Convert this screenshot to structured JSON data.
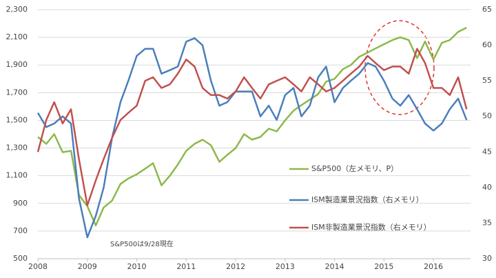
{
  "chart_data": {
    "type": "line",
    "x": [
      2008,
      2008.17,
      2008.33,
      2008.5,
      2008.67,
      2008.83,
      2009,
      2009.17,
      2009.33,
      2009.5,
      2009.67,
      2009.83,
      2010,
      2010.17,
      2010.33,
      2010.5,
      2010.67,
      2010.83,
      2011,
      2011.17,
      2011.33,
      2011.5,
      2011.67,
      2011.83,
      2012,
      2012.17,
      2012.33,
      2012.5,
      2012.67,
      2012.83,
      2013,
      2013.17,
      2013.33,
      2013.5,
      2013.67,
      2013.83,
      2014,
      2014.17,
      2014.33,
      2014.5,
      2014.67,
      2014.83,
      2015,
      2015.17,
      2015.33,
      2015.5,
      2015.67,
      2015.83,
      2016,
      2016.17,
      2016.33,
      2016.5,
      2016.67
    ],
    "series": [
      {
        "name": "S&P500（左メモリ、P）",
        "color": "#8db84a",
        "axis": "y",
        "values": [
          1380,
          1330,
          1400,
          1270,
          1280,
          960,
          880,
          740,
          870,
          920,
          1040,
          1080,
          1110,
          1150,
          1190,
          1030,
          1100,
          1180,
          1280,
          1330,
          1360,
          1320,
          1200,
          1250,
          1300,
          1400,
          1360,
          1380,
          1440,
          1420,
          1500,
          1570,
          1610,
          1650,
          1690,
          1780,
          1800,
          1870,
          1900,
          1960,
          1990,
          2020,
          2050,
          2080,
          2100,
          2080,
          1950,
          2070,
          1940,
          2060,
          2080,
          2140,
          2170
        ]
      },
      {
        "name": "ISM製造業景況指数（右メモリ）",
        "color": "#4a7ebb",
        "axis": "y2",
        "values": [
          50.5,
          48.5,
          49,
          50,
          49,
          38.5,
          33,
          36,
          40,
          47,
          52,
          55,
          58.5,
          59.5,
          59.5,
          56,
          56.5,
          57,
          60.5,
          61,
          60,
          55,
          51.5,
          52,
          53.5,
          53.5,
          53.5,
          50,
          51.5,
          49.5,
          53,
          54,
          50,
          51.5,
          55.5,
          57,
          52,
          54,
          55,
          56,
          57.5,
          57,
          55,
          52.5,
          51.5,
          53,
          51,
          49,
          48,
          49,
          51,
          52.5,
          49.5
        ]
      },
      {
        "name": "ISM非製造業景況指数（右メモリ）",
        "color": "#c0504d",
        "axis": "y2",
        "values": [
          45,
          49.5,
          52,
          49,
          51,
          44,
          37.5,
          41,
          44,
          47,
          49.5,
          50.5,
          51.5,
          55,
          55.5,
          54,
          54.5,
          56,
          58,
          57,
          54,
          53,
          53,
          52.5,
          53.5,
          55.5,
          54,
          52.5,
          54.5,
          55,
          55.5,
          54.5,
          53.5,
          55.5,
          54.5,
          53.5,
          54,
          55,
          56,
          57,
          58.5,
          57.5,
          56.5,
          57,
          57,
          56,
          59.5,
          57.5,
          54,
          54,
          53,
          55.5,
          51
        ]
      }
    ],
    "annotation": "S&P500は9/28現在",
    "xlim": [
      2008,
      2016.75
    ],
    "xticks": [
      2008,
      2009,
      2010,
      2011,
      2012,
      2013,
      2014,
      2015,
      2016
    ],
    "ylim": [
      500,
      2300
    ],
    "yticks": [
      500,
      700,
      900,
      {
        "value": 1100,
        "label": "1,100"
      },
      {
        "value": 1300,
        "label": "1,300"
      },
      {
        "value": 1500,
        "label": "1,500"
      },
      {
        "value": 1700,
        "label": "1,700"
      },
      {
        "value": 1900,
        "label": "1,900"
      },
      {
        "value": 2100,
        "label": "2,100"
      },
      {
        "value": 2300,
        "label": "2,300"
      }
    ],
    "y2lim": [
      30,
      65
    ],
    "y2ticks": [
      30,
      35,
      40,
      45,
      50,
      55,
      60,
      65
    ],
    "grid": true
  }
}
